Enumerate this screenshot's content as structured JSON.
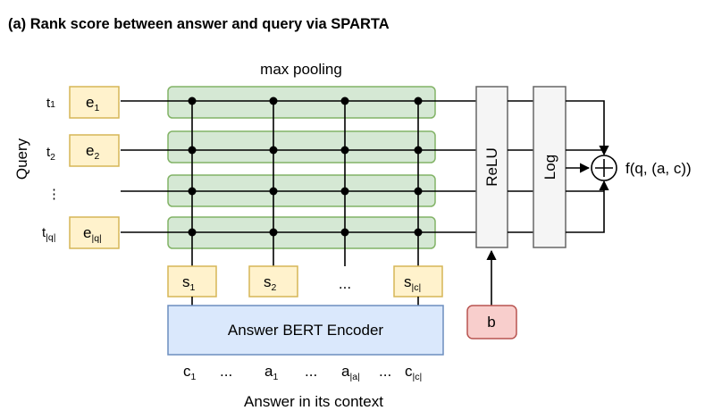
{
  "title": "(a)  Rank score between answer and query via SPARTA",
  "max_pooling_label": "max pooling",
  "query_label": "Query",
  "query_rows": [
    {
      "t_main": "t",
      "t_sub": "1",
      "e_main": "e",
      "e_sub": "1"
    },
    {
      "t_main": "t",
      "t_sub": "2",
      "e_main": "e",
      "e_sub": "2"
    },
    {
      "t_main": "⋮",
      "t_sub": "",
      "e_main": "",
      "e_sub": ""
    },
    {
      "t_main": "t",
      "t_sub": "|q|",
      "e_main": "e",
      "e_sub": "|q|"
    }
  ],
  "s_boxes": [
    {
      "main": "s",
      "sub": "1"
    },
    {
      "main": "s",
      "sub": "2"
    },
    {
      "main": "...",
      "sub": ""
    },
    {
      "main": "s",
      "sub": "|c|"
    }
  ],
  "relu_label": "ReLU",
  "log_label": "Log",
  "plus_symbol": "+",
  "output_label": "f(q, (a, c))",
  "bias_label": "b",
  "encoder_label": "Answer BERT Encoder",
  "context_tokens": [
    {
      "main": "c",
      "sub": "1"
    },
    {
      "main": "...",
      "sub": ""
    },
    {
      "main": "a",
      "sub": "1"
    },
    {
      "main": "...",
      "sub": ""
    },
    {
      "main": "a",
      "sub": "|a|"
    },
    {
      "main": "...",
      "sub": ""
    },
    {
      "main": "c",
      "sub": "|c|"
    }
  ],
  "answer_context_label": "Answer in its context",
  "colors": {
    "green_fill": "#d5e8d4",
    "green_stroke": "#82b366",
    "yellow_fill": "#fff2cc",
    "yellow_stroke": "#d6b656",
    "blue_fill": "#dae8fc",
    "blue_stroke": "#6c8ebf",
    "gray_fill": "#f5f5f5",
    "gray_stroke": "#666666",
    "red_fill": "#f8cecc",
    "red_stroke": "#b85450"
  }
}
